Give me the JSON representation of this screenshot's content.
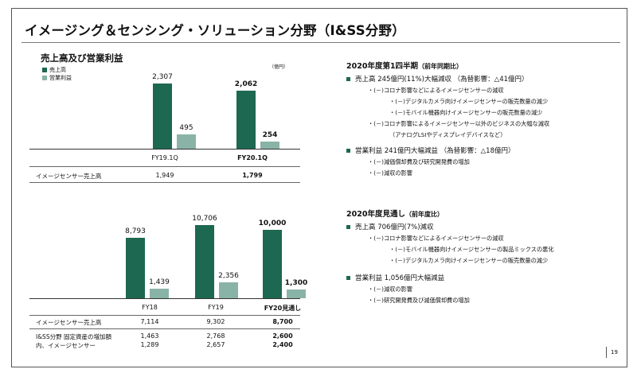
{
  "title": "イメージング＆センシング・ソリューション分野（I&SS分野）",
  "left": {
    "heading": "売上高及び営業利益",
    "unit": "（億円）",
    "legend": {
      "sales": "売上高",
      "op": "営業利益"
    },
    "colors": {
      "sales": "#1d6850",
      "op": "#8ab3a7"
    },
    "chart_data": [
      {
        "type": "bar",
        "categories": [
          "FY19.1Q",
          "FY20.1Q"
        ],
        "series": [
          {
            "name": "売上高",
            "values": [
              2307,
              2062
            ],
            "labels": [
              "2,307",
              "2,062"
            ]
          },
          {
            "name": "営業利益",
            "values": [
              495,
              254
            ],
            "labels": [
              "495",
              "254"
            ]
          }
        ],
        "table": {
          "label": "イメージセンサー売上高",
          "values": [
            "1,949",
            "1,799"
          ]
        }
      },
      {
        "type": "bar",
        "categories": [
          "FY18",
          "FY19",
          "FY20見通し"
        ],
        "series": [
          {
            "name": "売上高",
            "values": [
              8793,
              10706,
              10000
            ],
            "labels": [
              "8,793",
              "10,706",
              "10,000"
            ]
          },
          {
            "name": "営業利益",
            "values": [
              1439,
              2356,
              1300
            ],
            "labels": [
              "1,439",
              "2,356",
              "1,300"
            ]
          }
        ],
        "table": [
          {
            "label": "イメージセンサー売上高",
            "values": [
              "7,114",
              "9,302",
              "8,700"
            ]
          },
          {
            "label": "I&SS分野 固定資産の増加額",
            "values": [
              "1,463",
              "2,768",
              "2,600"
            ]
          },
          {
            "label": "内、イメージセンサー",
            "values": [
              "1,289",
              "2,657",
              "2,400"
            ]
          }
        ]
      }
    ]
  },
  "right": {
    "s1": {
      "heading": "2020年度第1四半期",
      "heading_note": "（前年同期比）",
      "b1": "売上高  245億円(11%)大幅減収 （為替影響：△41億円）",
      "b1_subs": [
        "・(－)コロナ影響などによるイメージセンサーの減収",
        "・(－)デジタルカメラ向けイメージセンサーの販売数量の減少",
        "・(－)モバイル機器向けイメージセンサーの販売数量の減少",
        "・(－)コロナ影響によるイメージセンサー以外のビジネスの大幅な減収",
        "（アナログLSIやディスプレイデバイスなど）"
      ],
      "b2": "営業利益  241億円大幅減益 （為替影響：△18億円）",
      "b2_subs": [
        "・(－)減価償却費及び研究開発費の増加",
        "・(－)減収の影響"
      ]
    },
    "s2": {
      "heading": "2020年度見通し",
      "heading_note": "（前年度比）",
      "b1": "売上高  706億円(7%)減収",
      "b1_subs": [
        "・(－)コロナ影響などによるイメージセンサーの減収",
        "・(－)モバイル機器向けイメージセンサーの製品ミックスの悪化",
        "・(－)デジタルカメラ向けイメージセンサーの販売数量の減少"
      ],
      "b2": "営業利益  1,056億円大幅減益",
      "b2_subs": [
        "・(－)減収の影響",
        "・(－)研究開発費及び減価償却費の増加"
      ]
    }
  },
  "page_number": "19"
}
